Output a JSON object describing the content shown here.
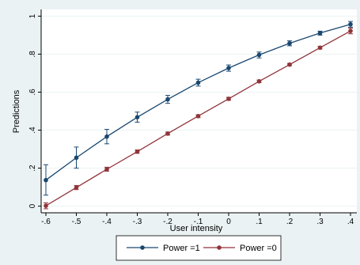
{
  "chart_data": {
    "type": "line",
    "title": "",
    "xlabel": "User intensity",
    "ylabel": "Predictions",
    "x": [
      -0.6,
      -0.5,
      -0.4,
      -0.3,
      -0.2,
      -0.1,
      0,
      0.1,
      0.2,
      0.3,
      0.4
    ],
    "xticks": [
      -0.6,
      -0.5,
      -0.4,
      -0.3,
      -0.2,
      -0.1,
      0,
      0.1,
      0.2,
      0.3,
      0.4
    ],
    "xtick_labels": [
      "-.6",
      "-.5",
      "-.4",
      "-.3",
      "-.2",
      "-.1",
      "0",
      ".1",
      ".2",
      ".3",
      ".4"
    ],
    "yticks": [
      0,
      0.2,
      0.4,
      0.6,
      0.8,
      1
    ],
    "ytick_labels": [
      "0",
      ".2",
      ".4",
      ".6",
      ".8",
      "1"
    ],
    "xlim": [
      -0.6,
      0.4
    ],
    "ylim": [
      -0.035,
      1.035
    ],
    "grid": true,
    "legend_position": "bottom",
    "series": [
      {
        "name": "Power =1",
        "color": "#1a476f",
        "marker": "circle",
        "values": [
          0.137,
          0.255,
          0.366,
          0.468,
          0.562,
          0.65,
          0.727,
          0.796,
          0.857,
          0.911,
          0.957
        ],
        "ci_low": [
          0.058,
          0.2,
          0.328,
          0.442,
          0.541,
          0.632,
          0.71,
          0.78,
          0.844,
          0.9,
          0.942
        ],
        "ci_high": [
          0.218,
          0.311,
          0.404,
          0.495,
          0.583,
          0.668,
          0.743,
          0.811,
          0.87,
          0.921,
          0.972
        ]
      },
      {
        "name": "Power =0",
        "color": "#90353b",
        "marker": "circle",
        "values": [
          0.002,
          0.098,
          0.194,
          0.287,
          0.382,
          0.474,
          0.565,
          0.657,
          0.745,
          0.834,
          0.922
        ],
        "ci_low": [
          -0.014,
          0.087,
          0.184,
          0.278,
          0.374,
          0.466,
          0.557,
          0.65,
          0.739,
          0.827,
          0.907
        ],
        "ci_high": [
          0.017,
          0.109,
          0.205,
          0.296,
          0.39,
          0.481,
          0.573,
          0.664,
          0.751,
          0.841,
          0.937
        ]
      }
    ]
  }
}
